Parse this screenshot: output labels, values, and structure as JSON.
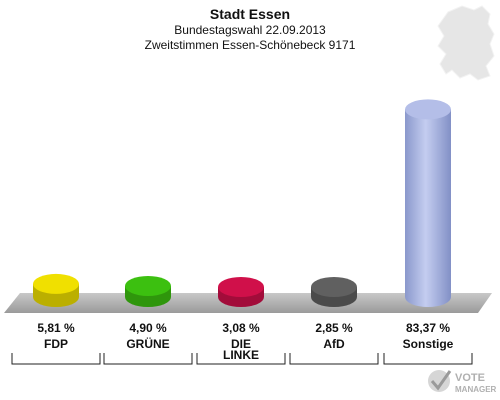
{
  "header": {
    "title": "Stadt Essen",
    "subtitle": "Bundestagswahl 22.09.2013",
    "subtitle2": "Zweitstimmen Essen-Schönebeck 9171"
  },
  "brand": {
    "line1": "VOTE",
    "line2": "MANAGER"
  },
  "chart_data": {
    "type": "bar",
    "categories": [
      "FDP",
      "GRÜNE",
      "DIE LINKE",
      "AfD",
      "Sonstige"
    ],
    "category_lines": [
      [
        "FDP"
      ],
      [
        "GRÜNE"
      ],
      [
        "DIE",
        "LINKE"
      ],
      [
        "AfD"
      ],
      [
        "Sonstige"
      ]
    ],
    "values": [
      5.81,
      4.9,
      3.08,
      2.85,
      83.37
    ],
    "value_labels": [
      "5,81 %",
      "4,90 %",
      "3,08 %",
      "2,85 %",
      "83,37 %"
    ],
    "colors": [
      "#f0e000",
      "#3cc010",
      "#d0104a",
      "#606060",
      "#a8b4e0"
    ],
    "ylim": [
      0,
      100
    ],
    "grid": false,
    "legend": "none"
  }
}
